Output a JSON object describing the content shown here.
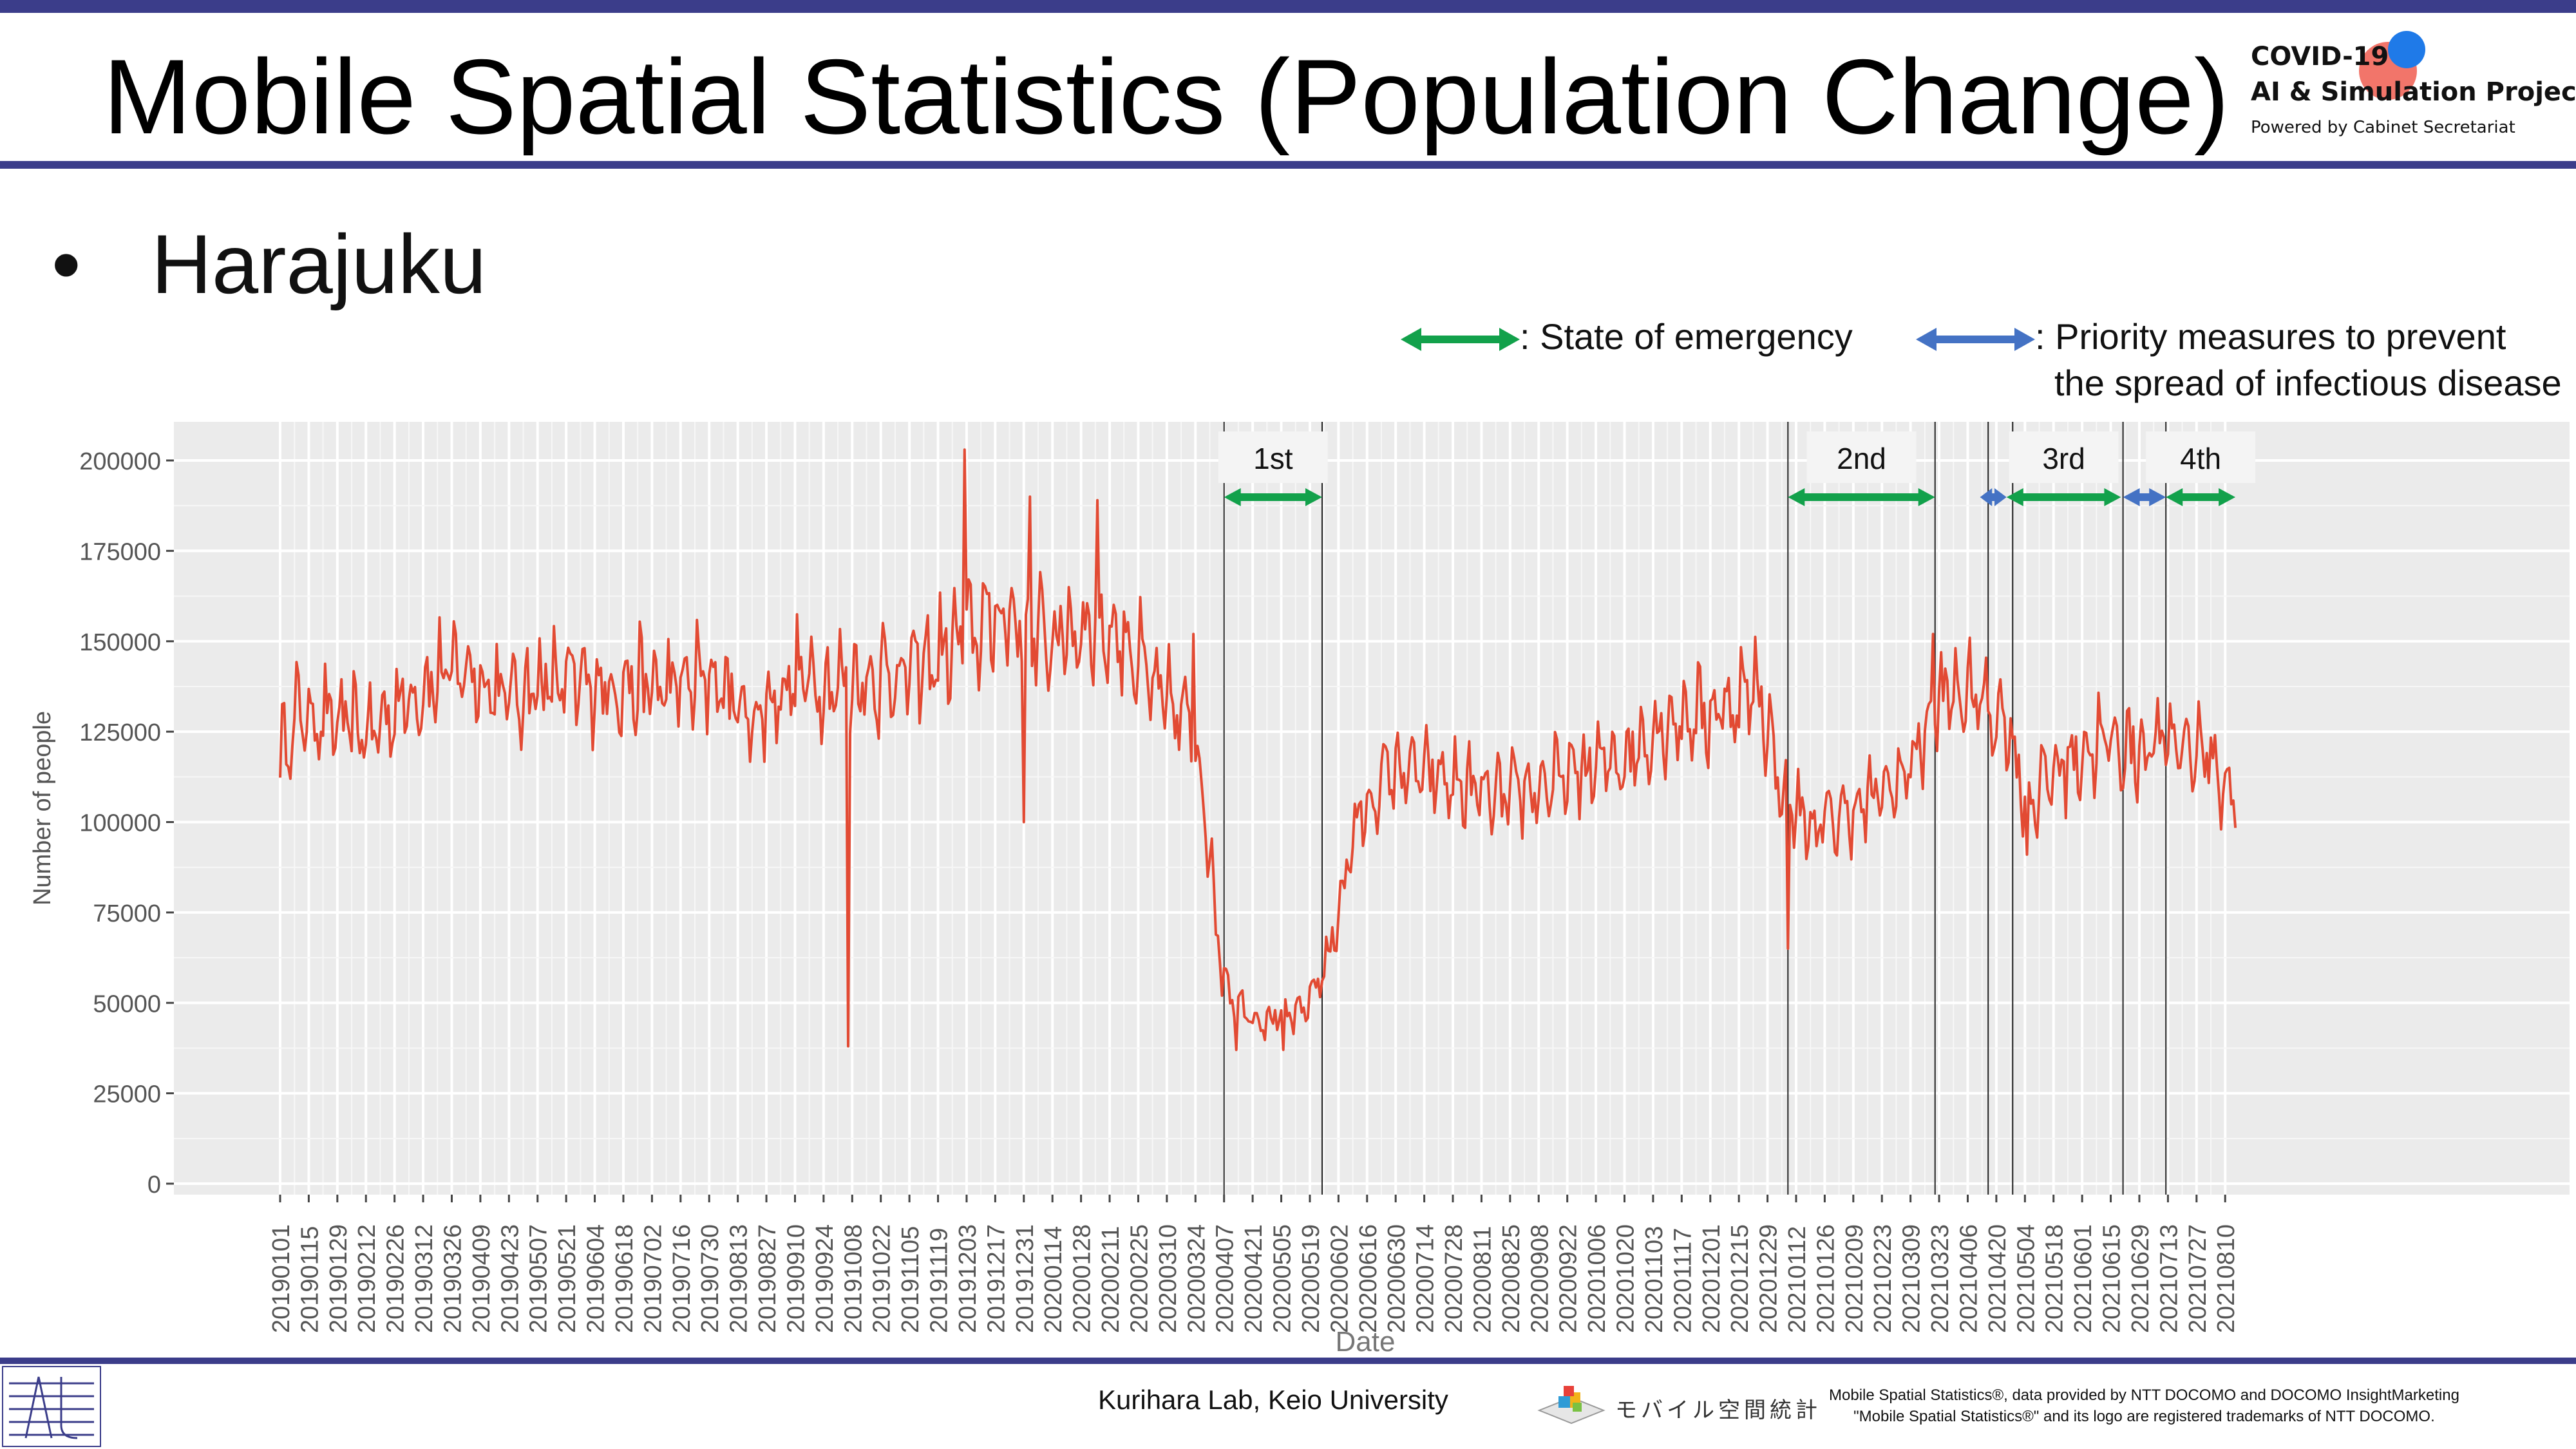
{
  "header": {
    "title": "Mobile Spatial Statistics (Population Change)",
    "brand_line1": "COVID-19",
    "brand_line2": "AI & Simulation Project",
    "brand_line3": "Powered by Cabinet Secretariat"
  },
  "subtitle": {
    "bullet": "•",
    "text": "Harajuku"
  },
  "legend": {
    "emergency_label": ": State of emergency",
    "priority_label_1": ": Priority measures to prevent",
    "priority_label_2": "the spread of infectious disease",
    "emergency_color": "#12a14b",
    "priority_color": "#4472c4"
  },
  "footer": {
    "lab": "Kurihara Lab, Keio University",
    "mobile_logo_text": "モバイル空間統計",
    "credit_line1": "Mobile Spatial Statistics®, data provided by NTT DOCOMO and DOCOMO InsightMarketing",
    "credit_line2": "\"Mobile Spatial Statistics®\" and its logo are registered trademarks of NTT DOCOMO."
  },
  "chart_data": {
    "type": "line",
    "xlabel": "Date",
    "ylabel": "Number of people",
    "ylim": [
      0,
      210000
    ],
    "yticks": [
      0,
      25000,
      50000,
      75000,
      100000,
      125000,
      150000,
      175000,
      200000
    ],
    "date_range": [
      "2019-01-01",
      "2021-08-15"
    ],
    "x_tick_labels": [
      "20190101",
      "20190115",
      "20190129",
      "20190212",
      "20190226",
      "20190312",
      "20190326",
      "20190409",
      "20190423",
      "20190507",
      "20190521",
      "20190604",
      "20190618",
      "20190702",
      "20190716",
      "20190730",
      "20190813",
      "20190827",
      "20190910",
      "20190924",
      "20191008",
      "20191022",
      "20191105",
      "20191119",
      "20191203",
      "20191217",
      "20191231",
      "20200114",
      "20200128",
      "20200211",
      "20200225",
      "20200310",
      "20200324",
      "20200407",
      "20200421",
      "20200505",
      "20200519",
      "20200602",
      "20200616",
      "20200630",
      "20200714",
      "20200728",
      "20200811",
      "20200825",
      "20200908",
      "20200922",
      "20201006",
      "20201020",
      "20201103",
      "20201117",
      "20201201",
      "20201215",
      "20201229",
      "20210112",
      "20210126",
      "20210209",
      "20210223",
      "20210309",
      "20210323",
      "20210406",
      "20210420",
      "20210504",
      "20210518",
      "20210601",
      "20210615",
      "20210629",
      "20210713",
      "20210727",
      "20210810"
    ],
    "grid": true,
    "background": "#ebebeb",
    "line_color": "#e24a33",
    "series": [
      {
        "trend": [
          [
            "2019-01-01",
            118000
          ],
          [
            "2019-01-10",
            130000
          ],
          [
            "2019-02-01",
            127000
          ],
          [
            "2019-02-15",
            125000
          ],
          [
            "2019-03-01",
            133000
          ],
          [
            "2019-03-20",
            140000
          ],
          [
            "2019-04-01",
            143000
          ],
          [
            "2019-04-20",
            135000
          ],
          [
            "2019-05-10",
            138000
          ],
          [
            "2019-06-10",
            138000
          ],
          [
            "2019-07-10",
            137000
          ],
          [
            "2019-08-01",
            140000
          ],
          [
            "2019-08-20",
            128000
          ],
          [
            "2019-09-10",
            140000
          ],
          [
            "2019-10-01",
            138000
          ],
          [
            "2019-10-20",
            140000
          ],
          [
            "2019-11-10",
            142000
          ],
          [
            "2019-12-01",
            150000
          ],
          [
            "2019-12-20",
            158000
          ],
          [
            "2020-01-10",
            150000
          ],
          [
            "2020-02-01",
            155000
          ],
          [
            "2020-02-20",
            150000
          ],
          [
            "2020-03-05",
            135000
          ],
          [
            "2020-03-20",
            128000
          ],
          [
            "2020-03-28",
            110000
          ],
          [
            "2020-04-03",
            72000
          ],
          [
            "2020-04-10",
            52000
          ],
          [
            "2020-04-25",
            45000
          ],
          [
            "2020-05-15",
            47000
          ],
          [
            "2020-05-28",
            62000
          ],
          [
            "2020-06-10",
            98000
          ],
          [
            "2020-06-28",
            115000
          ],
          [
            "2020-07-20",
            112000
          ],
          [
            "2020-08-20",
            106000
          ],
          [
            "2020-09-20",
            112000
          ],
          [
            "2020-10-20",
            118000
          ],
          [
            "2020-11-10",
            128000
          ],
          [
            "2020-12-01",
            130000
          ],
          [
            "2020-12-25",
            137000
          ],
          [
            "2021-01-05",
            108000
          ],
          [
            "2021-01-20",
            98000
          ],
          [
            "2021-02-15",
            105000
          ],
          [
            "2021-03-05",
            112000
          ],
          [
            "2021-03-25",
            135000
          ],
          [
            "2021-04-10",
            135000
          ],
          [
            "2021-04-25",
            128000
          ],
          [
            "2021-05-05",
            105000
          ],
          [
            "2021-05-20",
            115000
          ],
          [
            "2021-06-10",
            122000
          ],
          [
            "2021-06-28",
            120000
          ],
          [
            "2021-07-15",
            123000
          ],
          [
            "2021-07-30",
            120000
          ],
          [
            "2021-08-15",
            107000
          ]
        ],
        "extremes": [
          [
            "2019-10-06",
            38000
          ],
          [
            "2019-12-02",
            203000
          ],
          [
            "2019-12-31",
            100000
          ],
          [
            "2020-01-03",
            190000
          ],
          [
            "2020-02-05",
            189000
          ],
          [
            "2020-03-23",
            152000
          ],
          [
            "2020-04-06",
            52000
          ],
          [
            "2020-04-13",
            37000
          ],
          [
            "2020-05-06",
            37000
          ],
          [
            "2021-01-08",
            65000
          ],
          [
            "2021-03-20",
            152000
          ],
          [
            "2021-05-05",
            91000
          ],
          [
            "2021-08-08",
            98000
          ]
        ]
      }
    ],
    "annotations": {
      "phases": [
        {
          "label": "1st",
          "start": "2020-04-07",
          "end": "2020-05-25",
          "kind": "emergency"
        },
        {
          "label": "2nd",
          "start": "2021-01-08",
          "end": "2021-03-21",
          "kind": "emergency"
        },
        {
          "label": "3rd",
          "start": "2021-04-25",
          "end": "2021-06-20",
          "kind": "emergency"
        },
        {
          "label": "",
          "start": "2021-04-12",
          "end": "2021-04-25",
          "kind": "priority"
        },
        {
          "label": "",
          "start": "2021-06-21",
          "end": "2021-07-12",
          "kind": "priority"
        },
        {
          "label": "4th",
          "start": "2021-07-12",
          "end": "2021-08-15",
          "kind": "emergency"
        }
      ],
      "vertical_lines": [
        "2020-04-07",
        "2020-05-25",
        "2021-01-08",
        "2021-03-21",
        "2021-04-16",
        "2021-04-28",
        "2021-06-21",
        "2021-07-12"
      ]
    }
  }
}
